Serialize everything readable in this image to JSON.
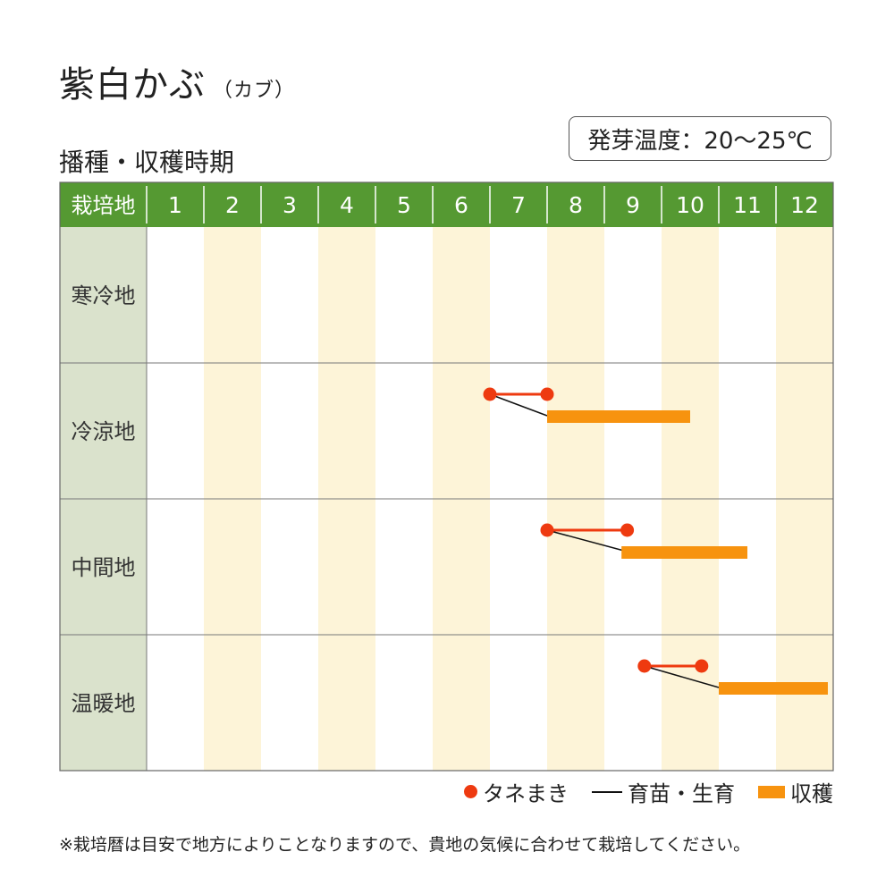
{
  "title": "紫白かぶ",
  "title_sub": "（カブ）",
  "subtitle": "播種・収穫時期",
  "germination_temp": "発芽温度：20〜25℃",
  "footnote": "※栽培暦は目安で地方によりことなりますので、貴地の気候に合わせて栽培してください。",
  "legend": {
    "sowing": "タネまき",
    "seedling": "育苗・生育",
    "harvest": "収穫"
  },
  "colors": {
    "header_green": "#559932",
    "row_label_bg": "#dae2cc",
    "stripe_cream": "#fdf4d8",
    "sowing_red": "#ee3a10",
    "harvest_orange": "#f7930f"
  },
  "chart_data": {
    "type": "gantt",
    "corner_label": "栽培地",
    "months": [
      "1",
      "2",
      "3",
      "4",
      "5",
      "6",
      "7",
      "8",
      "9",
      "10",
      "11",
      "12"
    ],
    "regions": [
      {
        "name": "寒冷地",
        "sowing": null,
        "seedling": null,
        "harvest": null
      },
      {
        "name": "冷涼地",
        "sowing": [
          7.0,
          8.0
        ],
        "seedling": [
          7.0,
          8.0
        ],
        "harvest": [
          8.0,
          10.5
        ]
      },
      {
        "name": "中間地",
        "sowing": [
          8.0,
          9.4
        ],
        "seedling": [
          8.0,
          9.4
        ],
        "harvest": [
          9.3,
          11.5
        ]
      },
      {
        "name": "温暖地",
        "sowing": [
          9.7,
          10.7
        ],
        "seedling": [
          9.7,
          11.0
        ],
        "harvest": [
          11.0,
          14.0
        ]
      }
    ]
  }
}
